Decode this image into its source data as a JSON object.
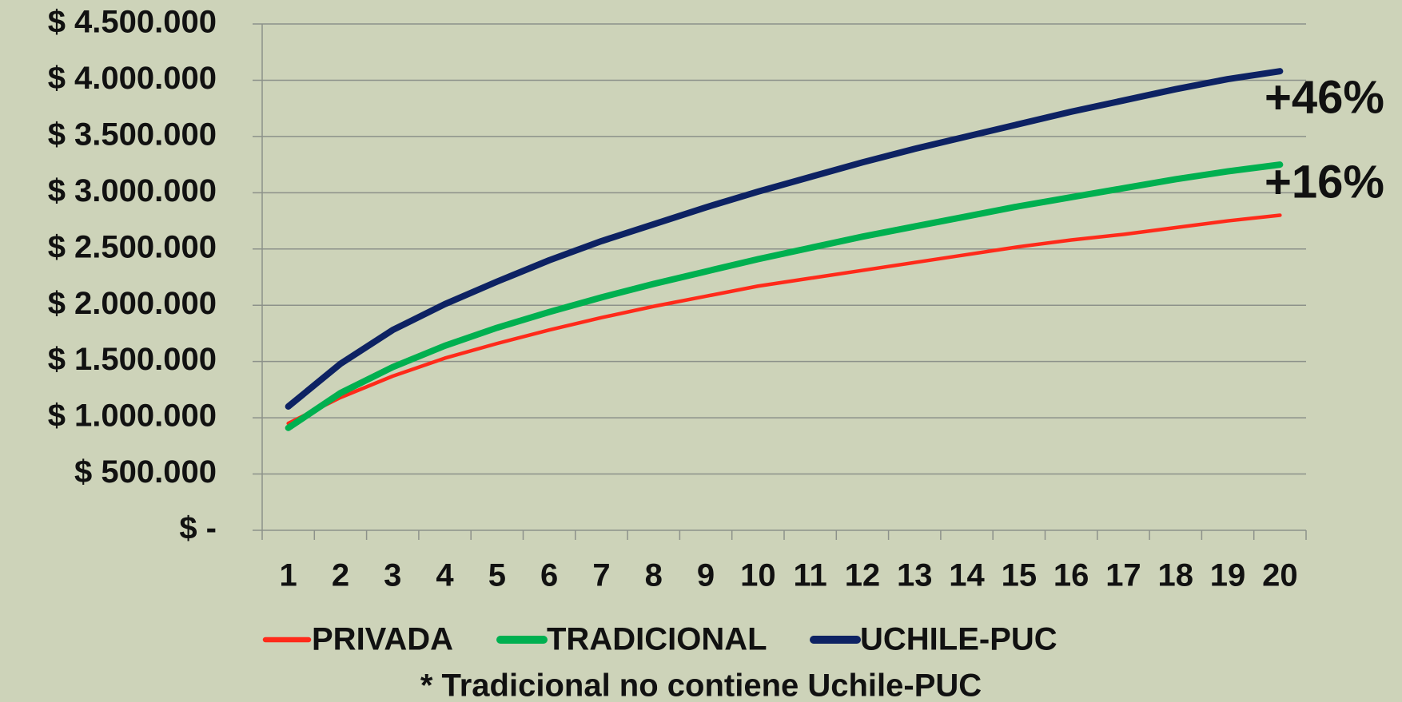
{
  "chart_data": {
    "type": "line",
    "categories": [
      "1",
      "2",
      "3",
      "4",
      "5",
      "6",
      "7",
      "8",
      "9",
      "10",
      "11",
      "12",
      "13",
      "14",
      "15",
      "16",
      "17",
      "18",
      "19",
      "20"
    ],
    "series": [
      {
        "name": "PRIVADA",
        "color": "#ff2a1a",
        "values": [
          950000,
          1180000,
          1370000,
          1530000,
          1660000,
          1780000,
          1890000,
          1990000,
          2080000,
          2170000,
          2240000,
          2310000,
          2380000,
          2450000,
          2520000,
          2580000,
          2630000,
          2690000,
          2750000,
          2800000
        ]
      },
      {
        "name": "TRADICIONAL",
        "color": "#00b050",
        "values": [
          910000,
          1220000,
          1450000,
          1640000,
          1800000,
          1940000,
          2070000,
          2190000,
          2300000,
          2410000,
          2510000,
          2610000,
          2700000,
          2790000,
          2880000,
          2960000,
          3040000,
          3120000,
          3190000,
          3250000
        ]
      },
      {
        "name": "UCHILE-PUC",
        "color": "#0d2263",
        "values": [
          1100000,
          1480000,
          1780000,
          2010000,
          2210000,
          2400000,
          2570000,
          2720000,
          2870000,
          3010000,
          3140000,
          3270000,
          3390000,
          3500000,
          3610000,
          3720000,
          3820000,
          3920000,
          4010000,
          4080000
        ]
      }
    ],
    "ylim": [
      0,
      4500000
    ],
    "yticks": [
      {
        "value": 0,
        "label": "$ -"
      },
      {
        "value": 500000,
        "label": "$ 500.000"
      },
      {
        "value": 1000000,
        "label": "$ 1.000.000"
      },
      {
        "value": 1500000,
        "label": "$ 1.500.000"
      },
      {
        "value": 2000000,
        "label": "$ 2.000.000"
      },
      {
        "value": 2500000,
        "label": "$ 2.500.000"
      },
      {
        "value": 3000000,
        "label": "$ 3.000.000"
      },
      {
        "value": 3500000,
        "label": "$ 3.500.000"
      },
      {
        "value": 4000000,
        "label": "$ 4.000.000"
      },
      {
        "value": 4500000,
        "label": "$ 4.500.000"
      }
    ],
    "grid": true,
    "annotations": [
      "+46%",
      "+16%"
    ],
    "note": "* Tradicional no contiene Uchile-PUC"
  }
}
